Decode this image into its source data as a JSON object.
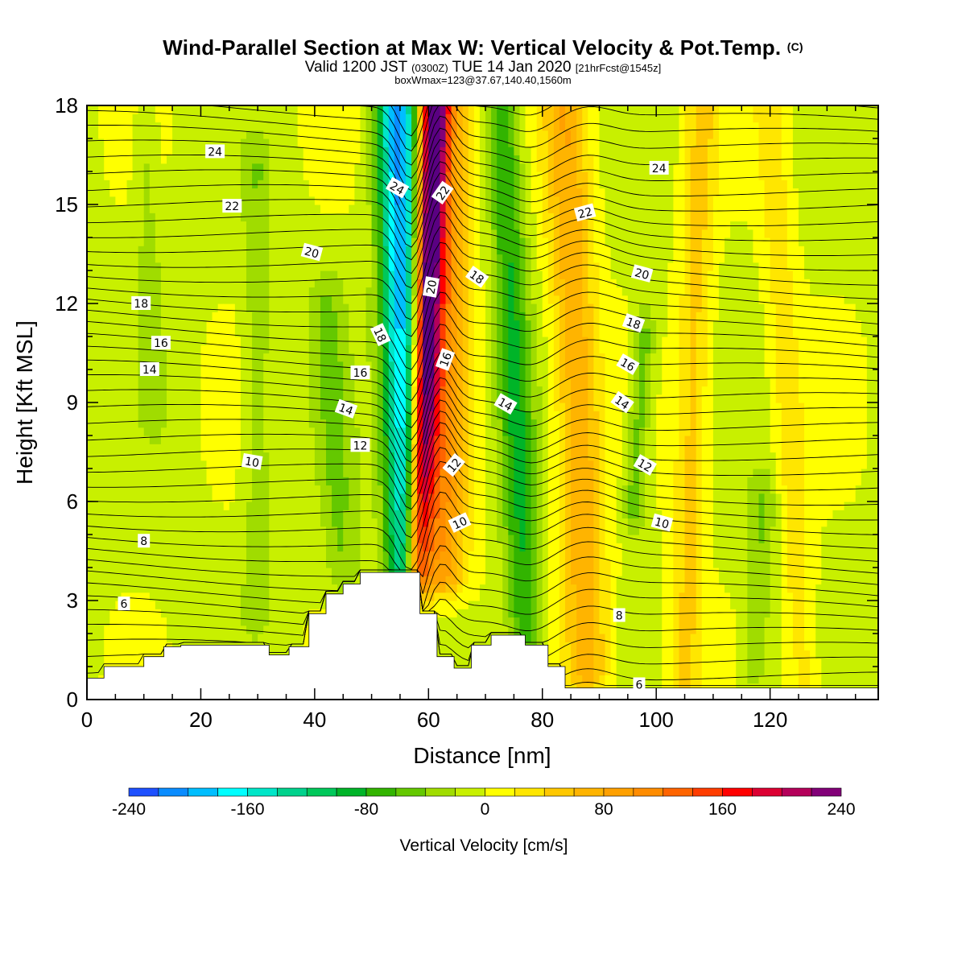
{
  "header": {
    "title": "Wind-Parallel Section at Max W: Vertical Velocity & Pot.Temp.",
    "title_mark": "(C)",
    "valid_prefix": "Valid 1200 JST",
    "valid_utc": "(0300Z)",
    "valid_date": "TUE 14 Jan 2020",
    "forecast_info": "[21hrFcst@1545z]",
    "box_info": "boxWmax=123@37.67,140.40,1560m"
  },
  "colors": {
    "terrain": "#ffffff",
    "contour": "#000000",
    "frame": "#000000",
    "colorbar": [
      "#0000ff",
      "#1e50ff",
      "#0a8cff",
      "#00beff",
      "#00ffff",
      "#00e6c8",
      "#00d28c",
      "#00c85a",
      "#00b428",
      "#32b400",
      "#64c800",
      "#a0dc00",
      "#c8f000",
      "#ffff00",
      "#ffe600",
      "#ffc800",
      "#ffb400",
      "#ffa000",
      "#ff8c00",
      "#ff6400",
      "#ff3c00",
      "#ff0000",
      "#dc0032",
      "#b4005a",
      "#820078",
      "#5a0082"
    ]
  },
  "chart_data": {
    "type": "heatmap",
    "title": "Wind-Parallel Section at Max W: Vertical Velocity & Pot.Temp.",
    "xlabel": "Distance [nm]",
    "ylabel": "Height [Kft MSL]",
    "xlim": [
      0,
      139
    ],
    "ylim": [
      0,
      18
    ],
    "x_ticks": [
      0,
      20,
      40,
      60,
      80,
      100,
      120
    ],
    "y_ticks": [
      0,
      3,
      6,
      9,
      12,
      15,
      18
    ],
    "colorbar": {
      "title": "Vertical Velocity [cm/s]",
      "min": -240,
      "max": 240,
      "step": 20,
      "tick_values": [
        -240,
        -160,
        -80,
        0,
        80,
        160,
        240
      ]
    },
    "terrain_profile": {
      "x": [
        0,
        3,
        3,
        10,
        10,
        13.5,
        13.5,
        16.5,
        16.5,
        32,
        32,
        35.5,
        35.5,
        39,
        39,
        42,
        42,
        45,
        45,
        48,
        48,
        58.5,
        58.5,
        61.5,
        61.5,
        64.5,
        64.5,
        67.5,
        67.5,
        71,
        71,
        77,
        77,
        81,
        81,
        84,
        84,
        88,
        88,
        139
      ],
      "y": [
        0.65,
        0.65,
        1.0,
        1.0,
        1.3,
        1.3,
        1.6,
        1.6,
        1.65,
        1.65,
        1.35,
        1.35,
        1.6,
        1.6,
        2.6,
        2.6,
        3.2,
        3.2,
        3.5,
        3.5,
        3.85,
        3.85,
        2.6,
        2.6,
        1.3,
        1.3,
        0.95,
        0.95,
        1.65,
        1.65,
        1.95,
        1.95,
        1.65,
        1.65,
        1.0,
        1.0,
        0.35,
        0.35,
        0.35,
        0.35
      ]
    },
    "velocity_features": [
      {
        "x_base": 56.5,
        "x_top": 54.5,
        "width": 3.5,
        "value": -200,
        "y_range": [
          4,
          18
        ]
      },
      {
        "x_base": 58,
        "x_top": 61,
        "width": 2.3,
        "value": 230,
        "y_range": [
          4,
          18
        ]
      },
      {
        "x_base": 62,
        "x_top": 63,
        "width": 4.5,
        "value": 110,
        "y_range": [
          4,
          18
        ]
      },
      {
        "x_base": 77,
        "x_top": 73,
        "width": 3,
        "value": -75,
        "y_range": [
          2,
          18
        ]
      },
      {
        "x_base": 88,
        "x_top": 84,
        "width": 4,
        "value": 80,
        "y_range": [
          1,
          18
        ]
      },
      {
        "x_base": 96,
        "x_top": 98,
        "width": 2,
        "value": -50,
        "y_range": [
          6,
          11
        ]
      },
      {
        "x_base": 105,
        "x_top": 108,
        "width": 3,
        "value": 50,
        "y_range": [
          0.5,
          18
        ]
      },
      {
        "x_base": 117,
        "x_top": 119,
        "width": 2.5,
        "value": -35,
        "y_range": [
          1,
          6
        ]
      },
      {
        "x_base": 126,
        "x_top": 120,
        "width": 3,
        "value": 35,
        "y_range": [
          0.5,
          18
        ]
      },
      {
        "x_base": 30,
        "x_top": 30,
        "width": 2.5,
        "value": -30,
        "y_range": [
          3,
          16
        ]
      },
      {
        "x_base": 12,
        "x_top": 10,
        "width": 2,
        "value": -25,
        "y_range": [
          9,
          17
        ]
      },
      {
        "x_base": 45,
        "x_top": 42,
        "width": 3,
        "value": -35,
        "y_range": [
          4,
          12
        ]
      }
    ],
    "isentrope_labels": [
      {
        "text": "24",
        "x": 22.5,
        "y": 16.6,
        "angle": 0
      },
      {
        "text": "22",
        "x": 25.5,
        "y": 14.95,
        "angle": 0
      },
      {
        "text": "20",
        "x": 39.5,
        "y": 13.55,
        "angle": 15
      },
      {
        "text": "18",
        "x": 9.5,
        "y": 12.0,
        "angle": 0
      },
      {
        "text": "16",
        "x": 13,
        "y": 10.8,
        "angle": 0
      },
      {
        "text": "14",
        "x": 11,
        "y": 10.0,
        "angle": 0
      },
      {
        "text": "10",
        "x": 29,
        "y": 7.2,
        "angle": 10
      },
      {
        "text": "8",
        "x": 10,
        "y": 4.8,
        "angle": 0
      },
      {
        "text": "6",
        "x": 6.5,
        "y": 2.9,
        "angle": 0
      },
      {
        "text": "24",
        "x": 54.5,
        "y": 15.5,
        "angle": 30
      },
      {
        "text": "22",
        "x": 62.5,
        "y": 15.35,
        "angle": -55
      },
      {
        "text": "20",
        "x": 60.5,
        "y": 12.5,
        "angle": -80
      },
      {
        "text": "18",
        "x": 51.5,
        "y": 11.05,
        "angle": 65
      },
      {
        "text": "16",
        "x": 48,
        "y": 9.9,
        "angle": 0
      },
      {
        "text": "14",
        "x": 45.5,
        "y": 8.8,
        "angle": 20
      },
      {
        "text": "12",
        "x": 48,
        "y": 7.7,
        "angle": 0
      },
      {
        "text": "16",
        "x": 63,
        "y": 10.3,
        "angle": -70
      },
      {
        "text": "18",
        "x": 68.5,
        "y": 12.8,
        "angle": 35
      },
      {
        "text": "14",
        "x": 73.5,
        "y": 8.95,
        "angle": 30
      },
      {
        "text": "12",
        "x": 64.5,
        "y": 7.1,
        "angle": -50
      },
      {
        "text": "10",
        "x": 65.5,
        "y": 5.35,
        "angle": -25
      },
      {
        "text": "22",
        "x": 87.5,
        "y": 14.75,
        "angle": -15
      },
      {
        "text": "20",
        "x": 97.5,
        "y": 12.9,
        "angle": 15
      },
      {
        "text": "18",
        "x": 96,
        "y": 11.4,
        "angle": 20
      },
      {
        "text": "16",
        "x": 95,
        "y": 10.15,
        "angle": 30
      },
      {
        "text": "14",
        "x": 94,
        "y": 9.0,
        "angle": 35
      },
      {
        "text": "12",
        "x": 98,
        "y": 7.1,
        "angle": 30
      },
      {
        "text": "10",
        "x": 101,
        "y": 5.35,
        "angle": 15
      },
      {
        "text": "24",
        "x": 100.5,
        "y": 16.1,
        "angle": 0
      },
      {
        "text": "8",
        "x": 93.5,
        "y": 2.55,
        "angle": 0
      },
      {
        "text": "6",
        "x": 97,
        "y": 0.45,
        "angle": 0
      }
    ]
  }
}
